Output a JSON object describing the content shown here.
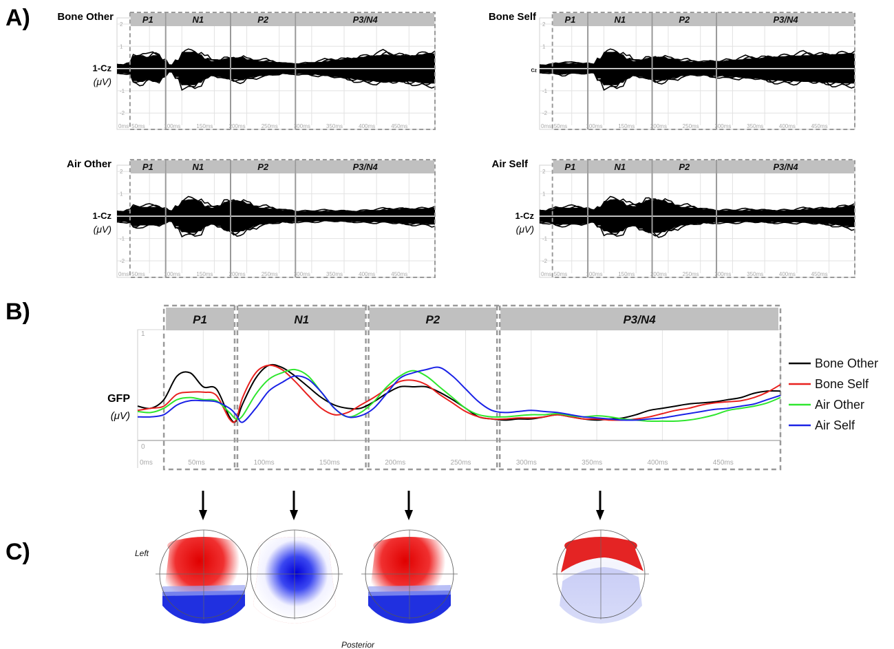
{
  "panel_labels": {
    "a": "A)",
    "b": "B)",
    "c": "C)"
  },
  "colors": {
    "bone_other": "#000000",
    "bone_self": "#e8201e",
    "air_other": "#2ee62e",
    "air_self": "#1a22e6",
    "window_header": "#c0c0c0"
  },
  "windows": [
    "P1",
    "N1",
    "P2",
    "P3/N4"
  ],
  "panel_a": {
    "ylabel": "1-Cz",
    "yunit": "(μV)",
    "alt_ylabel": "Cz",
    "yticks": [
      "2",
      "1",
      "",
      "-1",
      "-2"
    ],
    "alt_yticks": [
      "2",
      "1",
      "1",
      "-1",
      "-2"
    ],
    "xticks": [
      "0ms",
      "50ms",
      "100ms",
      "150ms",
      "200ms",
      "250ms",
      "300ms",
      "350ms",
      "400ms",
      "450ms"
    ],
    "conditions": [
      "Bone Other",
      "Bone Self",
      "Air Other",
      "Air Self"
    ]
  },
  "panel_b": {
    "ylabel": "GFP",
    "yunit": "(μV)",
    "yticks": [
      "1",
      "0"
    ],
    "xticks": [
      "0ms",
      "50ms",
      "100ms",
      "150ms",
      "200ms",
      "250ms",
      "300ms",
      "350ms",
      "400ms",
      "450ms"
    ]
  },
  "panel_c": {
    "left_label": "Left",
    "bottom_label": "Posterior"
  },
  "chart_data": {
    "type": "line",
    "xlabel": "",
    "ylabel": "GFP (μV)",
    "xlim": [
      0,
      490
    ],
    "ylim": [
      0,
      1
    ],
    "x_units": "ms",
    "windows": [
      {
        "name": "P1",
        "start": 20,
        "end": 75
      },
      {
        "name": "N1",
        "start": 75,
        "end": 175
      },
      {
        "name": "P2",
        "start": 175,
        "end": 275
      },
      {
        "name": "P3/N4",
        "start": 275,
        "end": 490
      }
    ],
    "x": [
      0,
      10,
      20,
      30,
      40,
      50,
      60,
      70,
      75,
      80,
      90,
      100,
      110,
      120,
      130,
      140,
      150,
      160,
      170,
      180,
      190,
      200,
      210,
      220,
      230,
      240,
      250,
      260,
      270,
      280,
      290,
      300,
      310,
      320,
      330,
      340,
      350,
      360,
      370,
      380,
      390,
      400,
      410,
      420,
      430,
      440,
      450,
      460,
      470,
      480,
      490
    ],
    "series": [
      {
        "name": "Bone Other",
        "values": [
          0.32,
          0.3,
          0.38,
          0.6,
          0.63,
          0.5,
          0.48,
          0.22,
          0.18,
          0.34,
          0.58,
          0.7,
          0.68,
          0.6,
          0.5,
          0.4,
          0.33,
          0.3,
          0.3,
          0.36,
          0.44,
          0.5,
          0.5,
          0.5,
          0.45,
          0.38,
          0.3,
          0.22,
          0.2,
          0.19,
          0.2,
          0.2,
          0.22,
          0.24,
          0.22,
          0.2,
          0.19,
          0.2,
          0.21,
          0.24,
          0.28,
          0.3,
          0.32,
          0.34,
          0.35,
          0.36,
          0.38,
          0.4,
          0.44,
          0.46,
          0.46
        ]
      },
      {
        "name": "Bone Self",
        "values": [
          0.28,
          0.3,
          0.32,
          0.43,
          0.45,
          0.45,
          0.42,
          0.2,
          0.19,
          0.4,
          0.63,
          0.7,
          0.66,
          0.55,
          0.42,
          0.3,
          0.24,
          0.26,
          0.33,
          0.4,
          0.48,
          0.55,
          0.56,
          0.52,
          0.43,
          0.35,
          0.27,
          0.22,
          0.2,
          0.2,
          0.21,
          0.21,
          0.22,
          0.24,
          0.22,
          0.2,
          0.2,
          0.19,
          0.19,
          0.2,
          0.22,
          0.25,
          0.28,
          0.3,
          0.33,
          0.35,
          0.36,
          0.37,
          0.4,
          0.45,
          0.52
        ]
      },
      {
        "name": "Air Other",
        "values": [
          0.27,
          0.26,
          0.3,
          0.38,
          0.4,
          0.38,
          0.37,
          0.26,
          0.2,
          0.23,
          0.43,
          0.57,
          0.63,
          0.66,
          0.6,
          0.45,
          0.3,
          0.22,
          0.26,
          0.36,
          0.5,
          0.6,
          0.65,
          0.6,
          0.5,
          0.4,
          0.3,
          0.24,
          0.22,
          0.22,
          0.23,
          0.24,
          0.24,
          0.25,
          0.23,
          0.22,
          0.23,
          0.22,
          0.2,
          0.19,
          0.18,
          0.18,
          0.18,
          0.19,
          0.21,
          0.24,
          0.28,
          0.3,
          0.32,
          0.35,
          0.4
        ]
      },
      {
        "name": "Air Self",
        "values": [
          0.22,
          0.22,
          0.24,
          0.33,
          0.37,
          0.37,
          0.36,
          0.3,
          0.24,
          0.17,
          0.3,
          0.46,
          0.54,
          0.6,
          0.57,
          0.45,
          0.3,
          0.22,
          0.23,
          0.3,
          0.44,
          0.58,
          0.63,
          0.66,
          0.68,
          0.6,
          0.48,
          0.36,
          0.28,
          0.26,
          0.27,
          0.28,
          0.27,
          0.26,
          0.24,
          0.22,
          0.21,
          0.2,
          0.19,
          0.19,
          0.2,
          0.21,
          0.23,
          0.25,
          0.27,
          0.29,
          0.3,
          0.32,
          0.34,
          0.38,
          0.42
        ]
      }
    ],
    "legend": [
      "Bone Other",
      "Bone Self",
      "Air Other",
      "Air Self"
    ],
    "legend_position": "right",
    "grid": true
  }
}
